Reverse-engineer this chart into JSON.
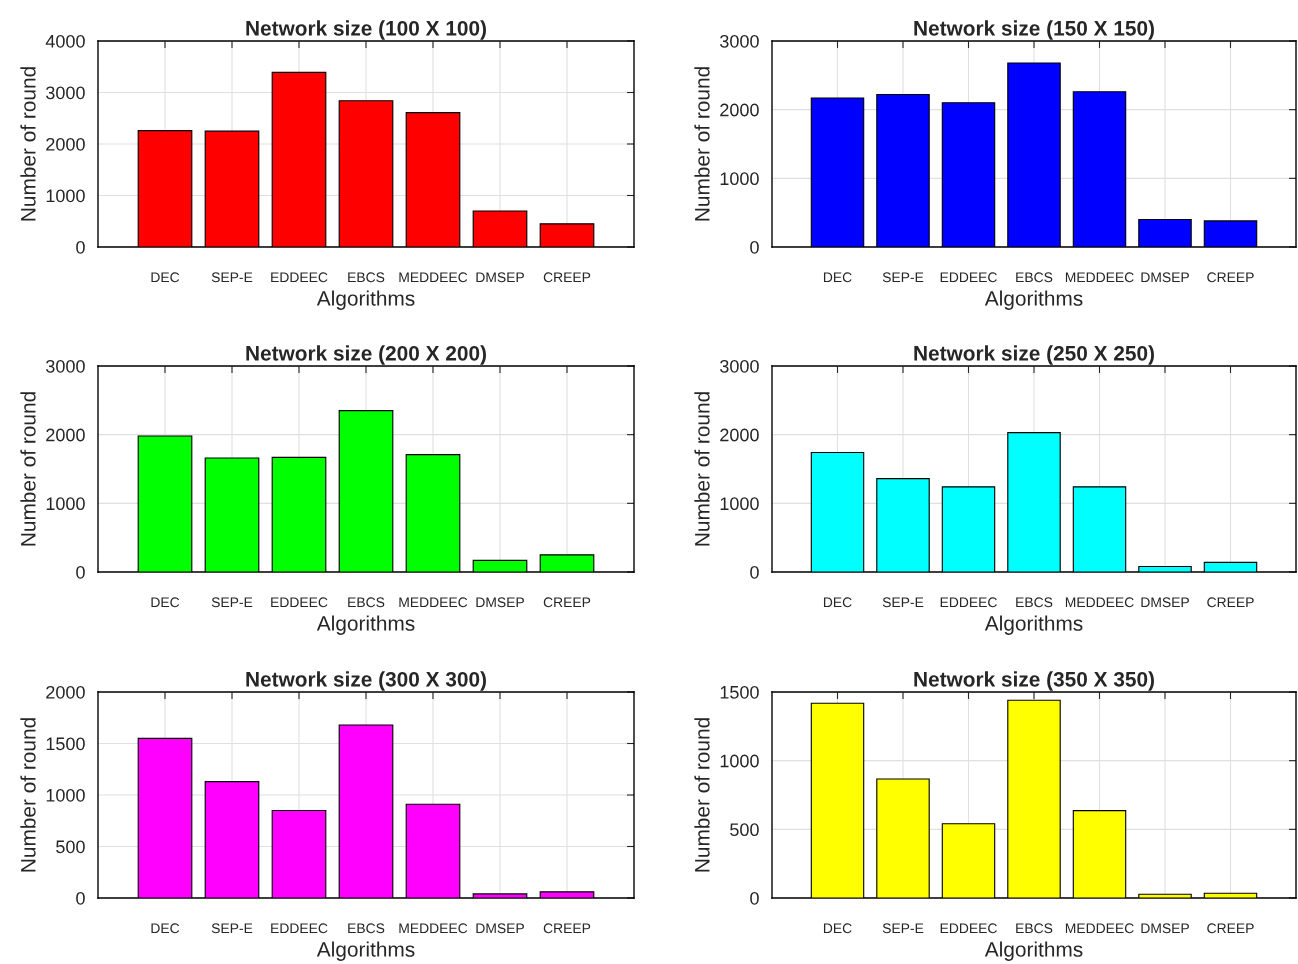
{
  "chart_data": [
    {
      "type": "bar",
      "title": "Network size (100 X 100)",
      "xlabel": "Algorithms",
      "ylabel": "Number of round",
      "categories": [
        "DEC",
        "SEP-E",
        "EDDEEC",
        "EBCS",
        "MEDDEEC",
        "DMSEP",
        "CREEP"
      ],
      "values": [
        2260,
        2250,
        3390,
        2840,
        2610,
        700,
        450
      ],
      "color": "#ff0000",
      "ylim": [
        0,
        4000
      ],
      "yticks": [
        0,
        1000,
        2000,
        3000,
        4000
      ],
      "grid": true
    },
    {
      "type": "bar",
      "title": "Network size (150 X 150)",
      "xlabel": "Algorithms",
      "ylabel": "Number of round",
      "categories": [
        "DEC",
        "SEP-E",
        "EDDEEC",
        "EBCS",
        "MEDDEEC",
        "DMSEP",
        "CREEP"
      ],
      "values": [
        2170,
        2220,
        2100,
        2680,
        2260,
        400,
        380
      ],
      "color": "#0000ff",
      "ylim": [
        0,
        3000
      ],
      "yticks": [
        0,
        1000,
        2000,
        3000
      ],
      "grid": true
    },
    {
      "type": "bar",
      "title": "Network size (200 X 200)",
      "xlabel": "Algorithms",
      "ylabel": "Number of round",
      "categories": [
        "DEC",
        "SEP-E",
        "EDDEEC",
        "EBCS",
        "MEDDEEC",
        "DMSEP",
        "CREEP"
      ],
      "values": [
        1980,
        1660,
        1670,
        2350,
        1710,
        170,
        250
      ],
      "color": "#00ff00",
      "ylim": [
        0,
        3000
      ],
      "yticks": [
        0,
        1000,
        2000,
        3000
      ],
      "grid": true
    },
    {
      "type": "bar",
      "title": "Network size (250 X 250)",
      "xlabel": "Algorithms",
      "ylabel": "Number of round",
      "categories": [
        "DEC",
        "SEP-E",
        "EDDEEC",
        "EBCS",
        "MEDDEEC",
        "DMSEP",
        "CREEP"
      ],
      "values": [
        1740,
        1360,
        1240,
        2030,
        1240,
        80,
        140
      ],
      "color": "#00ffff",
      "ylim": [
        0,
        3000
      ],
      "yticks": [
        0,
        1000,
        2000,
        3000
      ],
      "grid": true
    },
    {
      "type": "bar",
      "title": "Network size (300 X 300)",
      "xlabel": "Algorithms",
      "ylabel": "Number of round",
      "categories": [
        "DEC",
        "SEP-E",
        "EDDEEC",
        "EBCS",
        "MEDDEEC",
        "DMSEP",
        "CREEP"
      ],
      "values": [
        1550,
        1130,
        850,
        1680,
        910,
        40,
        60
      ],
      "color": "#ff00ff",
      "ylim": [
        0,
        2000
      ],
      "yticks": [
        0,
        500,
        1000,
        1500,
        2000
      ],
      "grid": true
    },
    {
      "type": "bar",
      "title": "Network size (350 X 350)",
      "xlabel": "Algorithms",
      "ylabel": "Number of round",
      "categories": [
        "DEC",
        "SEP-E",
        "EDDEEC",
        "EBCS",
        "MEDDEEC",
        "DMSEP",
        "CREEP"
      ],
      "values": [
        1418,
        867,
        541,
        1440,
        636,
        27,
        35
      ],
      "color": "#ffff00",
      "ylim": [
        0,
        1500
      ],
      "yticks": [
        0,
        500,
        1000,
        1500
      ],
      "grid": true
    }
  ]
}
